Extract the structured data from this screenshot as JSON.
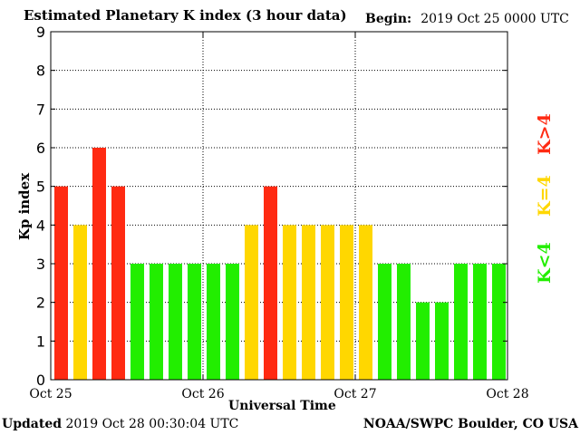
{
  "header": {
    "title": "Estimated Planetary K index (3 hour data)",
    "begin_label": "Begin:",
    "begin_value": "2019 Oct 25 0000 UTC"
  },
  "footer": {
    "updated_label": "Updated",
    "updated_value": "2019 Oct 28 00:30:04 UTC",
    "credit": "NOAA/SWPC Boulder, CO USA"
  },
  "legend": {
    "high": "K>4",
    "mid": "K=4",
    "low": "K<4"
  },
  "colors": {
    "high": "#ff2a12",
    "mid": "#ffd700",
    "low": "#22ee00",
    "grid": "#000000"
  },
  "chart_data": {
    "type": "bar",
    "title": "Estimated Planetary K index (3 hour data)",
    "xlabel": "Universal Time",
    "ylabel": "Kp index",
    "ylim": [
      0,
      9
    ],
    "yticks": [
      0,
      1,
      2,
      3,
      4,
      5,
      6,
      7,
      8,
      9
    ],
    "xtick_labels": [
      "Oct 25",
      "Oct 26",
      "Oct 27",
      "Oct 28"
    ],
    "grid": true,
    "legend_position": "right",
    "categories": [
      "Oct 25 00",
      "Oct 25 03",
      "Oct 25 06",
      "Oct 25 09",
      "Oct 25 12",
      "Oct 25 15",
      "Oct 25 18",
      "Oct 25 21",
      "Oct 26 00",
      "Oct 26 03",
      "Oct 26 06",
      "Oct 26 09",
      "Oct 26 12",
      "Oct 26 15",
      "Oct 26 18",
      "Oct 26 21",
      "Oct 27 00",
      "Oct 27 03",
      "Oct 27 06",
      "Oct 27 09",
      "Oct 27 12",
      "Oct 27 15",
      "Oct 27 18",
      "Oct 27 21"
    ],
    "values": [
      5,
      4,
      6,
      5,
      3,
      3,
      3,
      3,
      3,
      3,
      4,
      5,
      4,
      4,
      4,
      4,
      4,
      3,
      3,
      2,
      2,
      3,
      3,
      3
    ]
  }
}
